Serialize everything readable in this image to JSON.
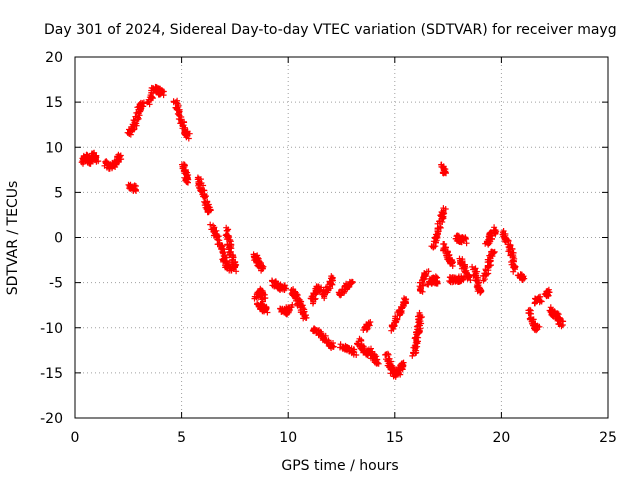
{
  "chart_data": {
    "type": "scatter",
    "title": "Day 301 of 2024, Sidereal Day-to-day VTEC variation (SDTVAR) for receiver mayg",
    "xlabel": "GPS time / hours",
    "ylabel": "SDTVAR / TECUs",
    "xlim": [
      0,
      25
    ],
    "ylim": [
      -20,
      20
    ],
    "xticks": [
      0,
      5,
      10,
      15,
      20,
      25
    ],
    "yticks": [
      -20,
      -15,
      -10,
      -5,
      0,
      5,
      10,
      15,
      20
    ],
    "grid": true,
    "marker": "+",
    "color": "#ff0000",
    "tracks": [
      {
        "points": [
          [
            0.35,
            8.5
          ],
          [
            0.5,
            9.0
          ],
          [
            0.7,
            8.3
          ],
          [
            0.9,
            9.3
          ],
          [
            1.0,
            8.6
          ]
        ]
      },
      {
        "points": [
          [
            1.45,
            8.2
          ],
          [
            1.7,
            7.8
          ],
          [
            1.9,
            8.4
          ],
          [
            2.1,
            8.9
          ]
        ]
      },
      {
        "points": [
          [
            2.55,
            11.5
          ],
          [
            2.8,
            12.5
          ],
          [
            3.0,
            14.2
          ],
          [
            3.2,
            14.8
          ]
        ]
      },
      {
        "points": [
          [
            2.6,
            5.6
          ],
          [
            2.85,
            5.4
          ]
        ]
      },
      {
        "points": [
          [
            3.45,
            15.0
          ],
          [
            3.7,
            16.5
          ],
          [
            3.9,
            16.2
          ],
          [
            4.1,
            16.0
          ]
        ]
      },
      {
        "points": [
          [
            4.7,
            15.2
          ],
          [
            4.9,
            13.5
          ],
          [
            5.1,
            12.0
          ],
          [
            5.3,
            11.2
          ]
        ]
      },
      {
        "points": [
          [
            5.05,
            8.0
          ],
          [
            5.2,
            6.8
          ],
          [
            5.3,
            6.2
          ]
        ]
      },
      {
        "points": [
          [
            5.8,
            6.5
          ],
          [
            6.0,
            5.0
          ],
          [
            6.2,
            3.5
          ],
          [
            6.3,
            2.8
          ]
        ]
      },
      {
        "points": [
          [
            6.4,
            1.2
          ],
          [
            6.7,
            0.0
          ],
          [
            6.9,
            -1.5
          ],
          [
            7.1,
            -3.0
          ],
          [
            7.3,
            -3.5
          ]
        ]
      },
      {
        "points": [
          [
            7.1,
            0.8
          ],
          [
            7.25,
            -0.8
          ],
          [
            7.4,
            -2.5
          ],
          [
            7.5,
            -3.5
          ]
        ]
      },
      {
        "points": [
          [
            8.4,
            -2.0
          ],
          [
            8.6,
            -2.8
          ],
          [
            8.8,
            -3.5
          ]
        ]
      },
      {
        "points": [
          [
            8.5,
            -6.5
          ],
          [
            8.7,
            -6.0
          ],
          [
            8.9,
            -6.8
          ]
        ]
      },
      {
        "points": [
          [
            8.6,
            -7.6
          ],
          [
            8.8,
            -7.8
          ],
          [
            9.0,
            -8.0
          ]
        ]
      },
      {
        "points": [
          [
            9.3,
            -5.0
          ],
          [
            9.5,
            -5.5
          ],
          [
            9.8,
            -5.6
          ]
        ]
      },
      {
        "points": [
          [
            9.7,
            -8.0
          ],
          [
            9.9,
            -8.3
          ],
          [
            10.1,
            -7.8
          ]
        ]
      },
      {
        "points": [
          [
            10.2,
            -6.0
          ],
          [
            10.4,
            -6.6
          ],
          [
            10.6,
            -7.8
          ],
          [
            10.8,
            -8.8
          ]
        ]
      },
      {
        "points": [
          [
            11.1,
            -7.0
          ],
          [
            11.3,
            -6.0
          ],
          [
            11.5,
            -5.5
          ]
        ]
      },
      {
        "points": [
          [
            11.6,
            -6.5
          ],
          [
            11.9,
            -5.5
          ],
          [
            12.1,
            -4.5
          ]
        ]
      },
      {
        "points": [
          [
            11.2,
            -10.2
          ],
          [
            11.5,
            -10.6
          ],
          [
            11.8,
            -11.5
          ],
          [
            12.1,
            -12.0
          ]
        ]
      },
      {
        "points": [
          [
            12.4,
            -6.5
          ],
          [
            12.7,
            -5.5
          ],
          [
            13.0,
            -5.0
          ]
        ]
      },
      {
        "points": [
          [
            12.5,
            -12.0
          ],
          [
            12.8,
            -12.4
          ],
          [
            13.1,
            -12.8
          ]
        ]
      },
      {
        "points": [
          [
            13.3,
            -11.5
          ],
          [
            13.5,
            -12.3
          ],
          [
            13.7,
            -12.8
          ]
        ]
      },
      {
        "points": [
          [
            13.8,
            -12.5
          ],
          [
            14.0,
            -13.2
          ],
          [
            14.2,
            -13.8
          ]
        ]
      },
      {
        "points": [
          [
            13.6,
            -10.0
          ],
          [
            13.8,
            -9.5
          ]
        ]
      },
      {
        "points": [
          [
            14.6,
            -13.0
          ],
          [
            14.8,
            -14.5
          ],
          [
            15.0,
            -15.2
          ],
          [
            15.2,
            -14.8
          ],
          [
            15.4,
            -13.8
          ]
        ]
      },
      {
        "points": [
          [
            14.9,
            -10.0
          ],
          [
            15.1,
            -8.8
          ],
          [
            15.3,
            -7.8
          ],
          [
            15.5,
            -7.0
          ]
        ]
      },
      {
        "points": [
          [
            15.9,
            -13.0
          ],
          [
            16.0,
            -11.5
          ],
          [
            16.1,
            -10.0
          ],
          [
            16.2,
            -8.5
          ]
        ]
      },
      {
        "points": [
          [
            16.2,
            -6.0
          ],
          [
            16.3,
            -4.5
          ],
          [
            16.5,
            -4.0
          ]
        ]
      },
      {
        "points": [
          [
            16.6,
            -5.0
          ],
          [
            16.8,
            -4.6
          ],
          [
            17.0,
            -4.8
          ]
        ]
      },
      {
        "points": [
          [
            16.8,
            -1.0
          ],
          [
            17.0,
            0.5
          ],
          [
            17.2,
            2.0
          ],
          [
            17.3,
            3.0
          ]
        ]
      },
      {
        "points": [
          [
            17.25,
            8.0
          ],
          [
            17.35,
            7.2
          ]
        ]
      },
      {
        "points": [
          [
            17.3,
            -1.0
          ],
          [
            17.5,
            -2.2
          ],
          [
            17.7,
            -3.0
          ]
        ]
      },
      {
        "points": [
          [
            17.9,
            0.0
          ],
          [
            18.1,
            -0.2
          ],
          [
            18.3,
            -0.3
          ]
        ]
      },
      {
        "points": [
          [
            17.6,
            -4.6
          ],
          [
            17.9,
            -4.7
          ],
          [
            18.2,
            -4.5
          ]
        ]
      },
      {
        "points": [
          [
            18.1,
            -2.5
          ],
          [
            18.3,
            -3.5
          ],
          [
            18.5,
            -4.5
          ]
        ]
      },
      {
        "points": [
          [
            18.7,
            -3.5
          ],
          [
            18.9,
            -5.0
          ],
          [
            19.0,
            -6.0
          ]
        ]
      },
      {
        "points": [
          [
            19.2,
            -4.5
          ],
          [
            19.4,
            -3.0
          ],
          [
            19.6,
            -1.5
          ]
        ]
      },
      {
        "points": [
          [
            19.3,
            -0.8
          ],
          [
            19.5,
            0.2
          ],
          [
            19.7,
            0.8
          ]
        ]
      },
      {
        "points": [
          [
            20.1,
            0.5
          ],
          [
            20.3,
            -0.5
          ],
          [
            20.5,
            -2.0
          ],
          [
            20.6,
            -3.5
          ]
        ]
      },
      {
        "points": [
          [
            20.85,
            -4.3
          ],
          [
            21.0,
            -4.5
          ]
        ]
      },
      {
        "points": [
          [
            21.3,
            -8.0
          ],
          [
            21.5,
            -9.5
          ],
          [
            21.7,
            -10.2
          ]
        ]
      },
      {
        "points": [
          [
            21.6,
            -7.0
          ],
          [
            21.8,
            -6.8
          ]
        ]
      },
      {
        "points": [
          [
            22.1,
            -6.5
          ],
          [
            22.2,
            -6.0
          ]
        ]
      },
      {
        "points": [
          [
            22.3,
            -8.0
          ],
          [
            22.5,
            -8.5
          ],
          [
            22.7,
            -9.0
          ],
          [
            22.8,
            -9.5
          ]
        ]
      }
    ]
  }
}
